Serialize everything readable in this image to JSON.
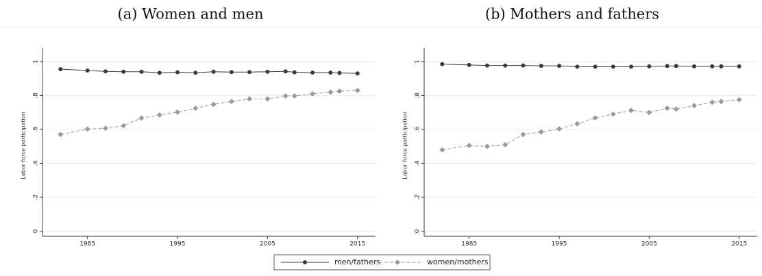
{
  "chart_data": [
    {
      "type": "line",
      "title": "(a) Women and men",
      "ylabel": "Labor force participation",
      "x": [
        1982,
        1985,
        1987,
        1989,
        1991,
        1993,
        1995,
        1997,
        1999,
        2001,
        2003,
        2005,
        2007,
        2008,
        2010,
        2012,
        2013,
        2015
      ],
      "series": [
        {
          "name": "men/fathers",
          "color": "#3a3a3a",
          "linestyle": "solid",
          "marker": "circle",
          "values": [
            0.955,
            0.947,
            0.942,
            0.94,
            0.94,
            0.934,
            0.937,
            0.934,
            0.94,
            0.938,
            0.938,
            0.94,
            0.942,
            0.937,
            0.935,
            0.935,
            0.933,
            0.93
          ]
        },
        {
          "name": "women/mothers",
          "color": "#9a9a9a",
          "linestyle": "dashed",
          "marker": "diamond",
          "values": [
            0.57,
            0.602,
            0.607,
            0.622,
            0.667,
            0.685,
            0.702,
            0.725,
            0.748,
            0.765,
            0.78,
            0.78,
            0.797,
            0.797,
            0.81,
            0.82,
            0.825,
            0.83
          ]
        }
      ],
      "xlim": [
        1980,
        2017
      ],
      "xticks": [
        1985,
        1995,
        2005,
        2015
      ],
      "ylim": [
        -0.03,
        1.04
      ],
      "yticks": [
        0,
        {
          "value": 0.2,
          "label": ".2"
        },
        {
          "value": 0.4,
          "label": ".4"
        },
        {
          "value": 0.6,
          "label": ".6"
        },
        {
          "value": 0.8,
          "label": ".8"
        },
        1
      ],
      "grid": true
    },
    {
      "type": "line",
      "title": "(b) Mothers and fathers",
      "ylabel": "Labor force participation",
      "x": [
        1982,
        1985,
        1987,
        1989,
        1991,
        1993,
        1995,
        1997,
        1999,
        2001,
        2003,
        2005,
        2007,
        2008,
        2010,
        2012,
        2013,
        2015
      ],
      "series": [
        {
          "color": "#3a3a3a",
          "linestyle": "solid",
          "marker": "circle",
          "values": [
            0.985,
            0.98,
            0.977,
            0.977,
            0.977,
            0.975,
            0.975,
            0.97,
            0.97,
            0.97,
            0.97,
            0.972,
            0.974,
            0.974,
            0.972,
            0.972,
            0.972,
            0.972
          ]
        },
        {
          "color": "#9a9a9a",
          "linestyle": "dashed",
          "marker": "diamond",
          "values": [
            0.48,
            0.505,
            0.5,
            0.51,
            0.57,
            0.585,
            0.603,
            0.633,
            0.668,
            0.69,
            0.712,
            0.7,
            0.725,
            0.72,
            0.74,
            0.76,
            0.765,
            0.775
          ]
        }
      ],
      "xlim": [
        1980,
        2017
      ],
      "xticks": [
        1985,
        1995,
        2005,
        2015
      ],
      "ylim": [
        -0.03,
        1.04
      ],
      "yticks": [
        0,
        {
          "value": 0.2,
          "label": ".2"
        },
        {
          "value": 0.4,
          "label": ".4"
        },
        {
          "value": 0.6,
          "label": ".6"
        },
        {
          "value": 0.8,
          "label": ".8"
        },
        1
      ],
      "grid": true
    }
  ]
}
